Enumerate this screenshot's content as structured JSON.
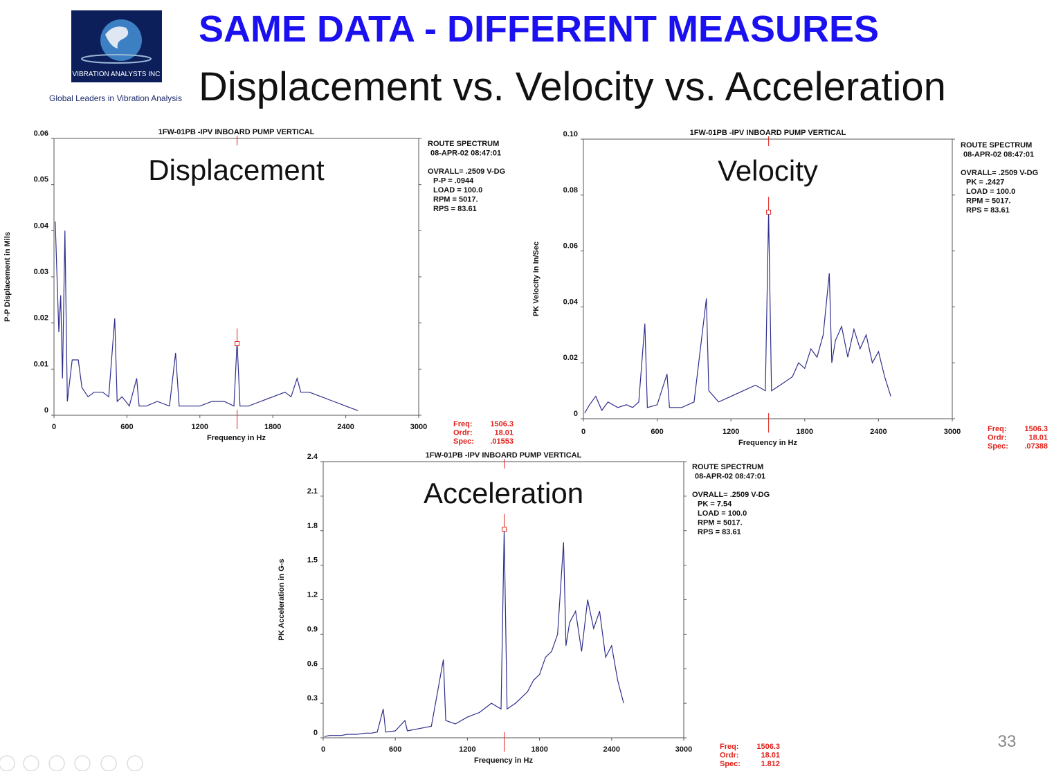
{
  "slide": {
    "title": "SAME DATA - DIFFERENT MEASURES",
    "subtitle": "Displacement vs. Velocity vs. Acceleration",
    "logo_text": "VIBRATION ANALYSTS INC",
    "tagline": "Global Leaders in Vibration Analysis",
    "page_number": "33"
  },
  "chart_data": [
    {
      "type": "line",
      "title": "1FW-01PB  -IPV   INBOARD PUMP VERTICAL",
      "label": "Displacement",
      "xlabel": "Frequency in Hz",
      "ylabel": "P-P Displacement in Mils",
      "color": "#2e2e8c",
      "xlim": [
        0,
        3000
      ],
      "xticks": [
        0,
        600,
        1200,
        1800,
        2400,
        3000
      ],
      "ylim": [
        0,
        0.06
      ],
      "yticks": [
        0,
        0.01,
        0.02,
        0.03,
        0.04,
        0.05,
        0.06
      ],
      "x": [
        10,
        25,
        40,
        55,
        70,
        90,
        110,
        150,
        200,
        230,
        280,
        330,
        400,
        450,
        500,
        520,
        560,
        620,
        680,
        700,
        760,
        850,
        950,
        1000,
        1030,
        1100,
        1200,
        1300,
        1400,
        1480,
        1506,
        1530,
        1600,
        1700,
        1800,
        1900,
        1950,
        2000,
        2030,
        2100,
        2200,
        2300,
        2400,
        2500
      ],
      "values": [
        0.042,
        0.03,
        0.018,
        0.026,
        0.008,
        0.04,
        0.003,
        0.012,
        0.012,
        0.006,
        0.004,
        0.005,
        0.005,
        0.004,
        0.021,
        0.003,
        0.004,
        0.002,
        0.008,
        0.002,
        0.002,
        0.003,
        0.002,
        0.0135,
        0.002,
        0.002,
        0.002,
        0.003,
        0.003,
        0.002,
        0.016,
        0.002,
        0.002,
        0.003,
        0.004,
        0.005,
        0.004,
        0.008,
        0.005,
        0.005,
        0.004,
        0.003,
        0.002,
        0.001
      ],
      "info": [
        "ROUTE SPECTRUM",
        "08-APR-02  08:47:01",
        "OVRALL=  .2509 V-DG",
        "P-P =  .0944",
        "LOAD = 100.0",
        "RPM =  5017.",
        "RPS =  83.61"
      ],
      "cursor": {
        "freq_label": "Freq:",
        "freq": 1506.3,
        "order_label": "Ordr:",
        "order": 18.01,
        "spec_label": "Spec:",
        "spec": {
          "value": 0.01553,
          "label": ".01553"
        }
      }
    },
    {
      "type": "line",
      "title": "1FW-01PB  -IPV   INBOARD PUMP VERTICAL",
      "label": "Velocity",
      "xlabel": "Frequency in Hz",
      "ylabel": "PK Velocity in In/Sec",
      "color": "#2e2e8c",
      "xlim": [
        0,
        3000
      ],
      "xticks": [
        0,
        600,
        1200,
        1800,
        2400,
        3000
      ],
      "ylim": [
        0,
        0.1
      ],
      "yticks": [
        0,
        0.02,
        0.04,
        0.06,
        0.08,
        {
          "value": 0.1,
          "label": "0.10"
        }
      ],
      "x": [
        10,
        50,
        100,
        150,
        200,
        280,
        350,
        400,
        450,
        500,
        520,
        600,
        680,
        700,
        800,
        900,
        1000,
        1020,
        1100,
        1200,
        1300,
        1400,
        1480,
        1506,
        1530,
        1600,
        1700,
        1750,
        1800,
        1850,
        1900,
        1950,
        2000,
        2020,
        2050,
        2100,
        2150,
        2200,
        2250,
        2300,
        2350,
        2400,
        2450,
        2500
      ],
      "values": [
        0.002,
        0.005,
        0.008,
        0.003,
        0.006,
        0.004,
        0.005,
        0.004,
        0.006,
        0.034,
        0.004,
        0.005,
        0.016,
        0.004,
        0.004,
        0.006,
        0.043,
        0.01,
        0.006,
        0.008,
        0.01,
        0.012,
        0.01,
        0.074,
        0.01,
        0.012,
        0.015,
        0.02,
        0.018,
        0.025,
        0.022,
        0.03,
        0.052,
        0.02,
        0.028,
        0.033,
        0.022,
        0.032,
        0.025,
        0.03,
        0.02,
        0.024,
        0.015,
        0.008
      ],
      "info": [
        "ROUTE SPECTRUM",
        "08-APR-02  08:47:01",
        "OVRALL=  .2509 V-DG",
        "PK  =  .2427",
        "LOAD = 100.0",
        "RPM =  5017.",
        "RPS =  83.61"
      ],
      "cursor": {
        "freq_label": "Freq:",
        "freq": 1506.3,
        "order_label": "Ordr:",
        "order": 18.01,
        "spec_label": "Spec:",
        "spec": {
          "value": 0.07388,
          "label": ".07388"
        }
      }
    },
    {
      "type": "line",
      "title": "1FW-01PB  -IPV   INBOARD PUMP VERTICAL",
      "label": "Acceleration",
      "xlabel": "Frequency in Hz",
      "ylabel": "PK Acceleration in G-s",
      "color": "#2e2e8c",
      "xlim": [
        0,
        3000
      ],
      "xticks": [
        0,
        600,
        1200,
        1800,
        2400,
        3000
      ],
      "ylim": [
        0,
        2.4
      ],
      "yticks": [
        0,
        0.3,
        0.6,
        0.9,
        1.2,
        1.5,
        1.8,
        2.1,
        2.4
      ],
      "x": [
        10,
        50,
        100,
        150,
        200,
        280,
        350,
        400,
        450,
        500,
        520,
        600,
        680,
        700,
        800,
        900,
        1000,
        1020,
        1100,
        1200,
        1300,
        1400,
        1480,
        1506,
        1530,
        1600,
        1700,
        1750,
        1800,
        1850,
        1900,
        1950,
        2000,
        2020,
        2050,
        2100,
        2150,
        2200,
        2250,
        2300,
        2350,
        2400,
        2450,
        2500
      ],
      "values": [
        0.01,
        0.02,
        0.02,
        0.02,
        0.03,
        0.03,
        0.04,
        0.04,
        0.05,
        0.25,
        0.05,
        0.06,
        0.15,
        0.06,
        0.08,
        0.1,
        0.68,
        0.15,
        0.12,
        0.18,
        0.22,
        0.3,
        0.25,
        1.8,
        0.25,
        0.3,
        0.4,
        0.5,
        0.55,
        0.7,
        0.75,
        0.9,
        1.7,
        0.8,
        1.0,
        1.1,
        0.75,
        1.2,
        0.95,
        1.1,
        0.7,
        0.8,
        0.5,
        0.3
      ],
      "info": [
        "ROUTE SPECTRUM",
        "08-APR-02  08:47:01",
        "OVRALL=  .2509 V-DG",
        "PK  =  7.54",
        "LOAD = 100.0",
        "RPM =  5017.",
        "RPS =  83.61"
      ],
      "cursor": {
        "freq_label": "Freq:",
        "freq": 1506.3,
        "order_label": "Ordr:",
        "order": 18.01,
        "spec_label": "Spec:",
        "spec": 1.812
      }
    }
  ]
}
